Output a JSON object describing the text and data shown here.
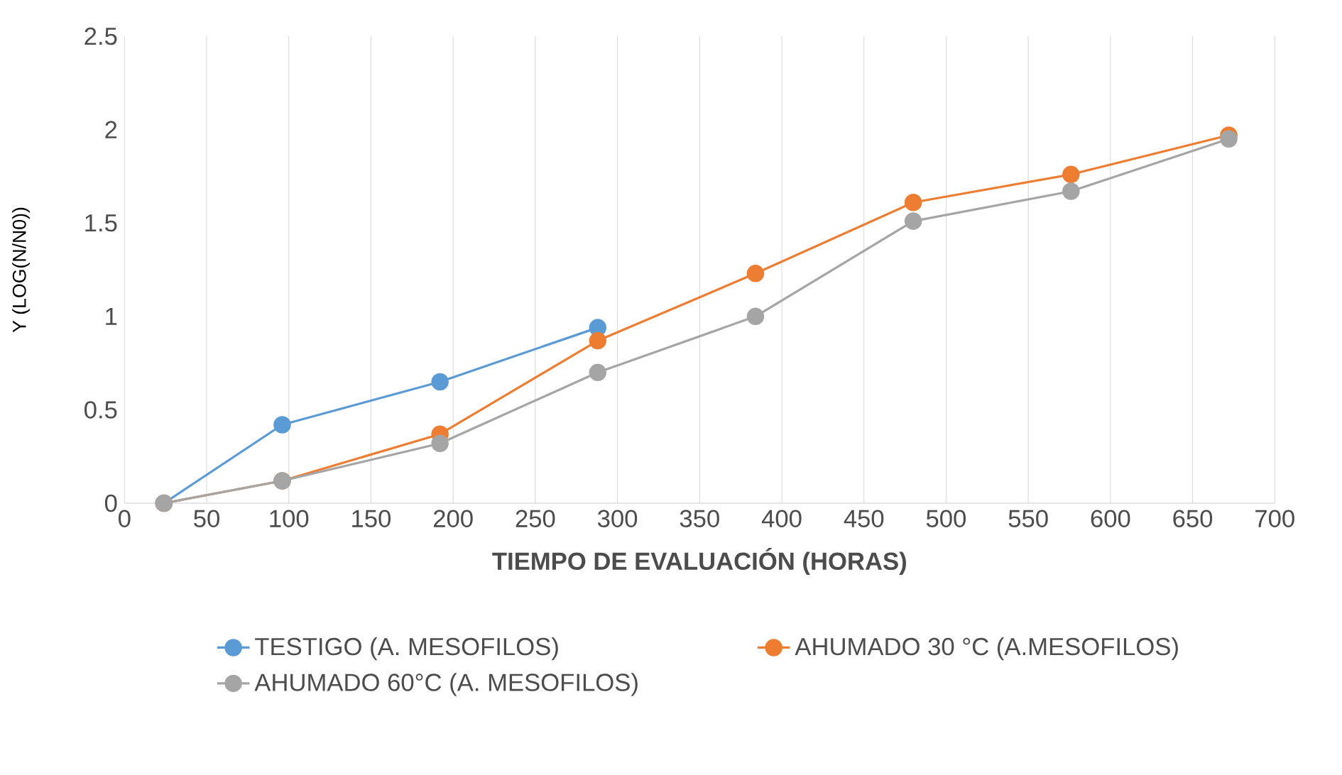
{
  "chart_data": {
    "type": "line",
    "xlabel": "TIEMPO DE EVALUACIÓN (HORAS)",
    "ylabel": "Y (LOG(N/N0))",
    "xlim": [
      0,
      700
    ],
    "xticks": [
      0,
      50,
      100,
      150,
      200,
      250,
      300,
      350,
      400,
      450,
      500,
      550,
      600,
      650,
      700
    ],
    "ylim": [
      0,
      2.5
    ],
    "yticks": [
      0,
      0.5,
      1,
      1.5,
      2,
      2.5
    ],
    "grid": "x",
    "legend": "bottom",
    "marker": "circle",
    "series": [
      {
        "name": "TESTIGO (A. MESOFILOS)",
        "color": "#5b9bd5",
        "x": [
          24,
          96,
          192,
          288
        ],
        "values": [
          0,
          0.42,
          0.65,
          0.94
        ]
      },
      {
        "name": "AHUMADO 30 °C  (A.MESOFILOS)",
        "color": "#ed7d31",
        "x": [
          24,
          96,
          192,
          288,
          384,
          480,
          576,
          672
        ],
        "values": [
          0,
          0.12,
          0.37,
          0.87,
          1.23,
          1.61,
          1.76,
          1.97
        ]
      },
      {
        "name": "AHUMADO 60°C (A. MESOFILOS)",
        "color": "#a5a5a5",
        "x": [
          24,
          96,
          192,
          288,
          384,
          480,
          576,
          672
        ],
        "values": [
          0,
          0.12,
          0.32,
          0.7,
          1.0,
          1.51,
          1.67,
          1.95
        ]
      }
    ]
  }
}
